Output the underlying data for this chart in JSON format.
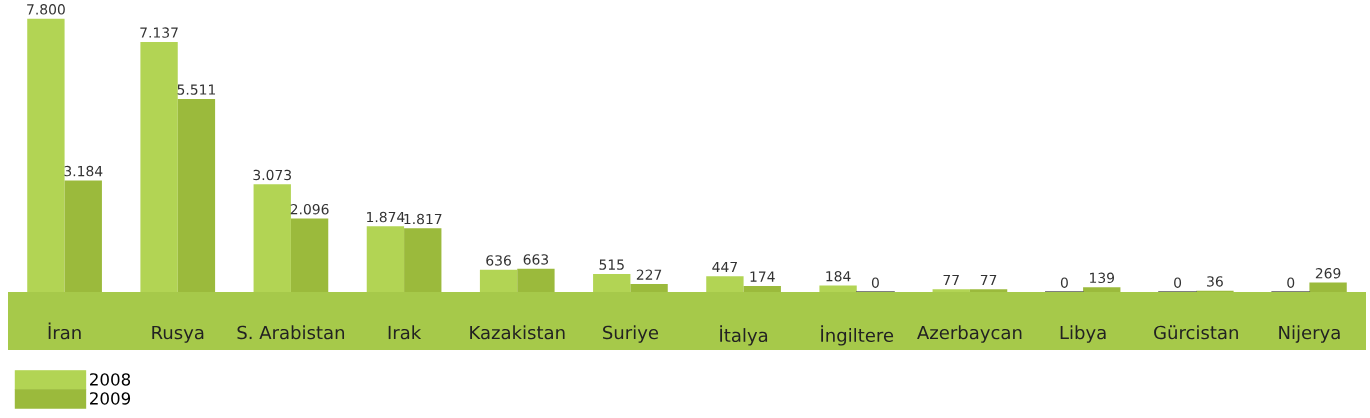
{
  "chart_data": {
    "type": "bar",
    "categories": [
      "İran",
      "Rusya",
      "S. Arabistan",
      "Irak",
      "Kazakistan",
      "Suriye",
      "İtalya",
      "İngiltere",
      "Azerbaycan",
      "Libya",
      "Gürcistan",
      "Nijerya"
    ],
    "series": [
      {
        "name": "2008",
        "color": "#b2d454",
        "values": [
          7800,
          7137,
          3073,
          1874,
          636,
          515,
          447,
          184,
          77,
          0,
          0,
          0
        ],
        "value_labels": [
          "7.800",
          "7.137",
          "3.073",
          "1.874",
          "636",
          "515",
          "447",
          "184",
          "77",
          "0",
          "0",
          "0"
        ]
      },
      {
        "name": "2009",
        "color": "#9bba3c",
        "values": [
          3184,
          5511,
          2096,
          1817,
          663,
          227,
          174,
          0,
          77,
          139,
          36,
          269
        ],
        "value_labels": [
          "3.184",
          "5.511",
          "2.096",
          "1.817",
          "663",
          "227",
          "174",
          "0",
          "77",
          "139",
          "36",
          "269"
        ]
      }
    ],
    "legend": "bottom left",
    "grid": false
  }
}
